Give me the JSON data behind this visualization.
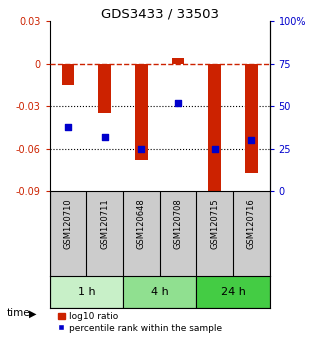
{
  "title": "GDS3433 / 33503",
  "samples": [
    "GSM120710",
    "GSM120711",
    "GSM120648",
    "GSM120708",
    "GSM120715",
    "GSM120716"
  ],
  "log10_ratio": [
    -0.015,
    -0.035,
    -0.068,
    0.004,
    -0.091,
    -0.077
  ],
  "percentile_rank": [
    38,
    32,
    25,
    52,
    25,
    30
  ],
  "groups": [
    {
      "label": "1 h",
      "start": 0,
      "end": 2,
      "color": "#c8f0c8"
    },
    {
      "label": "4 h",
      "start": 2,
      "end": 4,
      "color": "#90e090"
    },
    {
      "label": "24 h",
      "start": 4,
      "end": 6,
      "color": "#44cc44"
    }
  ],
  "ylim_left": [
    -0.09,
    0.03
  ],
  "ylim_right": [
    0,
    100
  ],
  "yticks_left": [
    -0.09,
    -0.06,
    -0.03,
    0,
    0.03
  ],
  "yticks_right": [
    0,
    25,
    50,
    75,
    100
  ],
  "ytick_labels_right": [
    "0",
    "25",
    "50",
    "75",
    "100%"
  ],
  "bar_color": "#cc2200",
  "dot_color": "#0000cc",
  "hline_color": "#cc2200",
  "dotline_color": "black",
  "background_color": "white",
  "label_area_color": "#cccccc",
  "time_arrow_label": "time",
  "legend_bar_label": "log10 ratio",
  "legend_dot_label": "percentile rank within the sample"
}
